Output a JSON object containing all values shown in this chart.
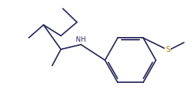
{
  "background_color": "#ffffff",
  "bond_color": "#2b2b5e",
  "s_color": "#b8860b",
  "linewidth": 1.4,
  "figsize": [
    2.84,
    1.46
  ],
  "dpi": 100,
  "xlim": [
    0,
    10
  ],
  "ylim": [
    0,
    5.2
  ]
}
